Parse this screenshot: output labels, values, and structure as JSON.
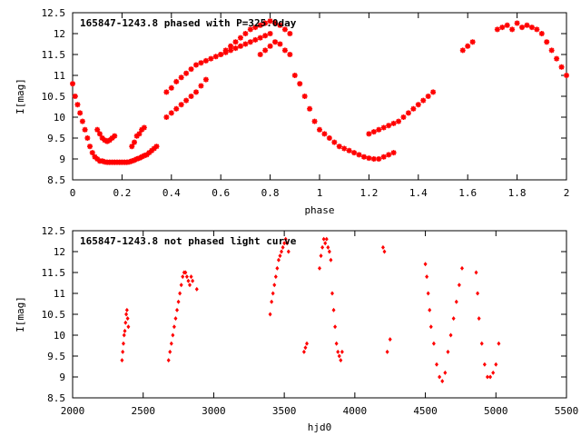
{
  "colors": {
    "points": "#ff0000",
    "axes": "#000000",
    "background": "#ffffff"
  },
  "chart_data": [
    {
      "type": "scatter",
      "title": "165847-1243.8 phased with P=325.0day",
      "xlabel": "phase",
      "ylabel": "I[mag]",
      "xlim": [
        0,
        2
      ],
      "ylim": [
        12.5,
        8.5
      ],
      "y_inverted": true,
      "grid": false,
      "marker": "star",
      "xticks": [
        "0",
        "0.2",
        "0.4",
        "0.6",
        "0.8",
        "1",
        "1.2",
        "1.4",
        "1.6",
        "1.8",
        "2"
      ],
      "yticks": [
        "8.5",
        "9",
        "9.5",
        "10",
        "10.5",
        "11",
        "11.5",
        "12",
        "12.5"
      ],
      "series": [
        {
          "x": [
            0.0,
            0.01,
            0.02,
            0.03,
            0.04,
            0.05,
            0.06,
            0.07,
            0.08,
            0.09,
            0.1,
            0.11,
            0.12,
            0.13,
            0.14,
            0.15,
            0.16,
            0.17,
            0.18,
            0.19,
            0.2,
            0.21,
            0.22,
            0.23,
            0.24,
            0.25,
            0.26,
            0.27,
            0.28,
            0.29,
            0.3,
            0.31,
            0.32,
            0.33,
            0.34,
            0.1,
            0.11,
            0.12,
            0.13,
            0.14,
            0.15,
            0.16,
            0.17,
            0.24,
            0.25,
            0.26,
            0.27,
            0.28,
            0.29,
            0.38,
            0.4,
            0.42,
            0.44,
            0.46,
            0.48,
            0.5,
            0.52,
            0.54,
            0.38,
            0.4,
            0.42,
            0.44,
            0.46,
            0.48,
            0.5,
            0.52,
            0.54,
            0.56,
            0.58,
            0.6,
            0.62,
            0.64,
            0.66,
            0.68,
            0.7,
            0.72,
            0.74,
            0.76,
            0.78,
            0.8,
            0.6,
            0.62,
            0.64,
            0.66,
            0.68,
            0.7,
            0.72,
            0.74,
            0.76,
            0.78,
            0.8,
            0.82,
            0.84,
            0.86,
            0.88,
            0.76,
            0.78,
            0.8,
            0.82,
            0.84,
            0.86,
            0.88,
            0.9,
            0.92,
            0.94,
            0.96,
            0.98,
            1.0,
            1.02,
            1.04,
            1.06,
            1.08,
            1.1,
            1.12,
            1.14,
            1.16,
            1.18,
            1.2,
            1.22,
            1.24,
            1.26,
            1.28,
            1.3,
            1.2,
            1.22,
            1.24,
            1.26,
            1.28,
            1.3,
            1.32,
            1.34,
            1.36,
            1.38,
            1.4,
            1.42,
            1.44,
            1.46,
            1.58,
            1.6,
            1.62,
            1.72,
            1.74,
            1.76,
            1.78,
            1.8,
            1.82,
            1.84,
            1.86,
            1.88,
            1.9,
            1.92,
            1.94,
            1.96,
            1.98,
            2.0
          ],
          "y": [
            10.8,
            10.5,
            10.3,
            10.1,
            9.9,
            9.7,
            9.5,
            9.3,
            9.15,
            9.05,
            9.0,
            8.95,
            8.95,
            8.93,
            8.92,
            8.92,
            8.92,
            8.92,
            8.92,
            8.92,
            8.92,
            8.92,
            8.92,
            8.93,
            8.95,
            8.97,
            9.0,
            9.02,
            9.05,
            9.08,
            9.1,
            9.15,
            9.2,
            9.25,
            9.3,
            9.7,
            9.6,
            9.5,
            9.45,
            9.42,
            9.45,
            9.5,
            9.55,
            9.3,
            9.4,
            9.55,
            9.6,
            9.7,
            9.75,
            10.0,
            10.1,
            10.2,
            10.3,
            10.4,
            10.5,
            10.6,
            10.75,
            10.9,
            10.6,
            10.7,
            10.85,
            10.95,
            11.05,
            11.15,
            11.25,
            11.3,
            11.35,
            11.4,
            11.45,
            11.5,
            11.55,
            11.6,
            11.65,
            11.7,
            11.75,
            11.8,
            11.85,
            11.9,
            11.95,
            12.0,
            11.5,
            11.6,
            11.7,
            11.8,
            11.9,
            12.0,
            12.1,
            12.15,
            12.2,
            12.25,
            12.3,
            12.25,
            12.2,
            12.1,
            12.0,
            11.5,
            11.6,
            11.7,
            11.8,
            11.75,
            11.6,
            11.5,
            11.0,
            10.8,
            10.5,
            10.2,
            9.9,
            9.7,
            9.6,
            9.5,
            9.4,
            9.3,
            9.25,
            9.2,
            9.15,
            9.1,
            9.05,
            9.02,
            9.0,
            9.0,
            9.05,
            9.1,
            9.15,
            9.6,
            9.65,
            9.7,
            9.75,
            9.8,
            9.85,
            9.9,
            10.0,
            10.1,
            10.2,
            10.3,
            10.4,
            10.5,
            10.6,
            11.6,
            11.7,
            11.8,
            12.1,
            12.15,
            12.2,
            12.1,
            12.25,
            12.15,
            12.2,
            12.15,
            12.1,
            12.0,
            11.8,
            11.6,
            11.4,
            11.2,
            11.0
          ]
        }
      ]
    },
    {
      "type": "scatter",
      "title": "165847-1243.8 not phased light curve",
      "xlabel": "hjd0",
      "ylabel": "I[mag]",
      "xlim": [
        2000,
        5500
      ],
      "ylim": [
        12.5,
        8.5
      ],
      "y_inverted": true,
      "grid": false,
      "marker": "diamond",
      "xticks": [
        "2000",
        "2500",
        "3000",
        "3500",
        "4000",
        "4500",
        "5000",
        "5500"
      ],
      "yticks": [
        "8.5",
        "9",
        "9.5",
        "10",
        "10.5",
        "11",
        "11.5",
        "12",
        "12.5"
      ],
      "series": [
        {
          "x": [
            2350,
            2355,
            2360,
            2365,
            2370,
            2375,
            2380,
            2385,
            2390,
            2395,
            2680,
            2690,
            2700,
            2710,
            2720,
            2730,
            2740,
            2750,
            2760,
            2770,
            2780,
            2790,
            2800,
            2810,
            2820,
            2830,
            2840,
            2850,
            2880,
            3400,
            3410,
            3420,
            3430,
            3440,
            3450,
            3460,
            3470,
            3480,
            3490,
            3500,
            3510,
            3520,
            3530,
            3640,
            3650,
            3660,
            3750,
            3760,
            3770,
            3780,
            3790,
            3800,
            3810,
            3820,
            3830,
            3840,
            3850,
            3860,
            3870,
            3880,
            3890,
            3900,
            3910,
            4200,
            4210,
            4230,
            4250,
            4500,
            4510,
            4520,
            4530,
            4540,
            4560,
            4580,
            4600,
            4620,
            4640,
            4660,
            4680,
            4700,
            4720,
            4740,
            4760,
            4860,
            4870,
            4880,
            4900,
            4920,
            4940,
            4960,
            4980,
            5000,
            5020
          ],
          "y": [
            9.4,
            9.6,
            9.8,
            10.0,
            10.1,
            10.3,
            10.5,
            10.6,
            10.4,
            10.2,
            9.4,
            9.6,
            9.8,
            10.0,
            10.2,
            10.4,
            10.6,
            10.8,
            11.0,
            11.2,
            11.4,
            11.5,
            11.5,
            11.4,
            11.3,
            11.2,
            11.4,
            11.3,
            11.1,
            10.5,
            10.8,
            11.0,
            11.2,
            11.4,
            11.6,
            11.8,
            11.9,
            12.0,
            12.1,
            12.2,
            12.3,
            12.2,
            12.0,
            9.6,
            9.7,
            9.8,
            11.6,
            11.9,
            12.1,
            12.3,
            12.2,
            12.3,
            12.1,
            12.0,
            11.8,
            11.0,
            10.6,
            10.2,
            9.8,
            9.6,
            9.5,
            9.4,
            9.6,
            12.1,
            12.0,
            9.6,
            9.9,
            11.7,
            11.4,
            11.0,
            10.6,
            10.2,
            9.8,
            9.3,
            9.0,
            8.9,
            9.1,
            9.6,
            10.0,
            10.4,
            10.8,
            11.2,
            11.6,
            11.5,
            11.0,
            10.4,
            9.8,
            9.3,
            9.0,
            9.0,
            9.1,
            9.3,
            9.8
          ]
        }
      ]
    }
  ]
}
